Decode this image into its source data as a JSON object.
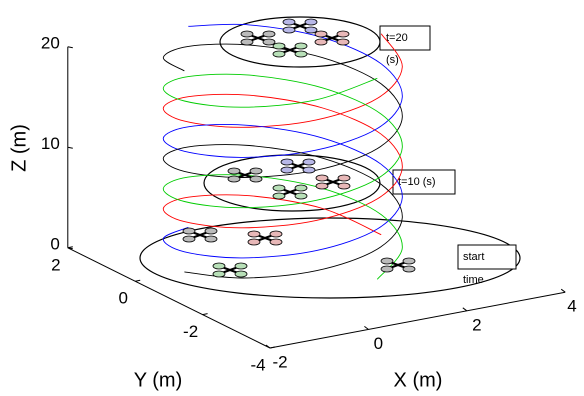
{
  "chart_data": {
    "type": "line3d",
    "xlabel": "X (m)",
    "ylabel": "Y (m)",
    "zlabel": "Z (m)",
    "xlim": [
      -2,
      4
    ],
    "ylim": [
      -4,
      2
    ],
    "zlim": [
      0,
      20
    ],
    "xticks": [
      -2,
      0,
      2,
      4
    ],
    "yticks": [
      -4,
      -2,
      0,
      2
    ],
    "zticks": [
      0,
      10,
      20
    ],
    "annotations": {
      "t20": "t=20",
      "t20_unit": "(s)",
      "t10": "t=10 (s)",
      "start": "start",
      "start_unit": "time"
    },
    "series": [
      {
        "color": "#ff0000",
        "x": [
          3,
          2.62,
          1.62,
          0.38,
          -0.62,
          -1,
          -0.62,
          0.38,
          1.62,
          2.62,
          3,
          2.62,
          1.62,
          0.38,
          -0.62,
          -1,
          -0.62,
          0.38,
          1.62,
          2.62,
          3
        ],
        "y": [
          0,
          1.18,
          1.9,
          1.9,
          1.18,
          0,
          -1.18,
          -1.9,
          -1.9,
          -1.18,
          0,
          1.18,
          1.9,
          1.9,
          1.18,
          0,
          -1.18,
          -1.9,
          -1.9,
          -1.18,
          0
        ],
        "z": [
          0,
          1,
          2,
          3,
          4,
          5,
          6,
          7,
          8,
          9,
          10,
          11,
          12,
          13,
          14,
          15,
          16,
          17,
          18,
          19,
          20
        ]
      },
      {
        "color": "#0000ff",
        "x": [
          0.38,
          -0.62,
          -1,
          -0.62,
          0.38,
          1.62,
          2.62,
          3,
          2.62,
          1.62,
          0.38,
          -0.62,
          -1,
          -0.62,
          0.38,
          1.62,
          2.62,
          3,
          2.62,
          1.62,
          0.38
        ],
        "y": [
          1.9,
          1.18,
          0,
          -1.18,
          -1.9,
          -1.9,
          -1.18,
          0,
          1.18,
          1.9,
          1.9,
          1.18,
          0,
          -1.18,
          -1.9,
          -1.9,
          -1.18,
          0,
          1.18,
          1.9,
          1.9
        ],
        "z": [
          0,
          1,
          2,
          3,
          4,
          5,
          6,
          7,
          8,
          9,
          10,
          11,
          12,
          13,
          14,
          15,
          16,
          17,
          18,
          19,
          20
        ]
      },
      {
        "color": "#000000",
        "x": [
          -1,
          -0.62,
          0.38,
          1.62,
          2.62,
          3,
          2.62,
          1.62,
          0.38,
          -0.62,
          -1,
          -0.62,
          0.38,
          1.62,
          2.62,
          3,
          2.62,
          1.62,
          0.38,
          -0.62,
          -1
        ],
        "y": [
          0,
          -1.18,
          -1.9,
          -1.9,
          -1.18,
          0,
          1.18,
          1.9,
          1.9,
          1.18,
          0,
          -1.18,
          -1.9,
          -1.9,
          -1.18,
          0,
          1.18,
          1.9,
          1.9,
          1.18,
          0
        ],
        "z": [
          0,
          1,
          2,
          3,
          4,
          5,
          6,
          7,
          8,
          9,
          10,
          11,
          12,
          13,
          14,
          15,
          16,
          17,
          18,
          19,
          20
        ]
      },
      {
        "color": "#00cc00",
        "x": [
          1.62,
          2.62,
          3,
          2.62,
          1.62,
          0.38,
          -0.62,
          -1,
          -0.62,
          0.38,
          1.62,
          2.62,
          3,
          2.62,
          1.62,
          0.38,
          -0.62,
          -1,
          -0.62,
          0.38,
          1.62
        ],
        "y": [
          -1.9,
          -1.18,
          0,
          1.18,
          1.9,
          1.9,
          1.18,
          0,
          -1.18,
          -1.9,
          -1.9,
          -1.18,
          0,
          1.18,
          1.9,
          1.9,
          1.18,
          0,
          -1.18,
          -1.9,
          -1.9
        ],
        "z": [
          0,
          1,
          2,
          3,
          4,
          5,
          6,
          7,
          8,
          9,
          10,
          11,
          12,
          13,
          14,
          15,
          16,
          17,
          18,
          19,
          20
        ]
      }
    ]
  }
}
